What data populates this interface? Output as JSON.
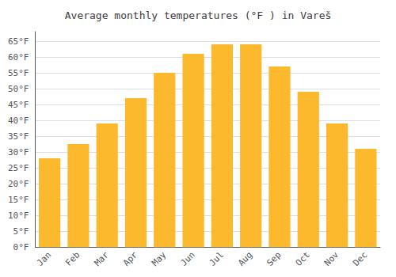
{
  "chart_data": {
    "type": "bar",
    "title": "Average monthly temperatures (°F ) in Vareš",
    "categories": [
      "Jan",
      "Feb",
      "Mar",
      "Apr",
      "May",
      "Jun",
      "Jul",
      "Aug",
      "Sep",
      "Oct",
      "Nov",
      "Dec"
    ],
    "values": [
      28,
      32.5,
      39,
      47,
      55,
      61,
      64,
      64,
      57,
      49,
      39,
      31
    ],
    "color": "#FDB92E",
    "ylim": [
      0,
      68
    ],
    "yticks": [
      {
        "value": 0,
        "label": "0°F"
      },
      {
        "value": 5,
        "label": "5°F"
      },
      {
        "value": 10,
        "label": "10°F"
      },
      {
        "value": 15,
        "label": "15°F"
      },
      {
        "value": 20,
        "label": "20°F"
      },
      {
        "value": 25,
        "label": "25°F"
      },
      {
        "value": 30,
        "label": "30°F"
      },
      {
        "value": 35,
        "label": "35°F"
      },
      {
        "value": 40,
        "label": "40°F"
      },
      {
        "value": 45,
        "label": "45°F"
      },
      {
        "value": 50,
        "label": "50°F"
      },
      {
        "value": 55,
        "label": "55°F"
      },
      {
        "value": 60,
        "label": "60°F"
      },
      {
        "value": 65,
        "label": "65°F"
      }
    ],
    "grid": true
  }
}
